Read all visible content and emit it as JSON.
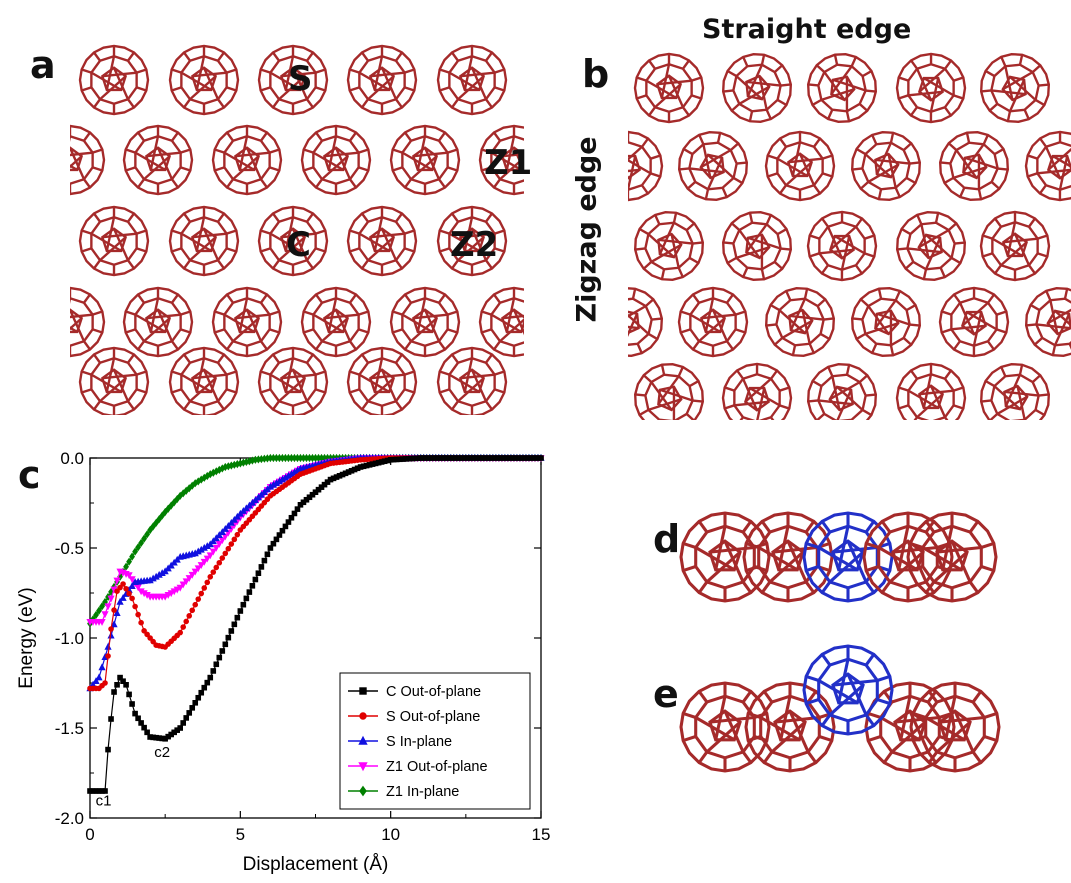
{
  "panels": {
    "a": {
      "letter": "a",
      "labels": [
        "S",
        "Z1",
        "C",
        "Z2"
      ]
    },
    "b": {
      "letter": "b",
      "title_top": "Straight edge",
      "title_side": "Zigzag edge"
    },
    "c": {
      "letter": "c"
    },
    "d": {
      "letter": "d"
    },
    "e": {
      "letter": "e"
    }
  },
  "colors": {
    "molecule": "#a52a2a",
    "highlight": "#2230c8"
  },
  "chart_data": {
    "type": "line",
    "xlabel": "Displacement (Å)",
    "ylabel": "Energy (eV)",
    "xlim": [
      0,
      15
    ],
    "ylim": [
      -2.0,
      0.0
    ],
    "xticks": [
      "0",
      "5",
      "10",
      "15"
    ],
    "yticks": [
      "0.0",
      "-0.5",
      "-1.0",
      "-1.5",
      "-2.0"
    ],
    "legend_position": "bottom-right",
    "annotations": [
      {
        "text": "c1",
        "x": 0.45,
        "y": -1.93
      },
      {
        "text": "c2",
        "x": 2.4,
        "y": -1.66
      }
    ],
    "series": [
      {
        "name": "C Out-of-plane",
        "color": "#000000",
        "marker": "square",
        "x": [
          0,
          0.3,
          0.5,
          0.6,
          0.7,
          0.8,
          1.0,
          1.2,
          1.5,
          2.0,
          2.5,
          3.0,
          4.0,
          5.0,
          6.0,
          7.0,
          8.0,
          9.0,
          10.0,
          11.0,
          12.0,
          15.0
        ],
        "y": [
          -1.85,
          -1.85,
          -1.85,
          -1.62,
          -1.45,
          -1.3,
          -1.22,
          -1.26,
          -1.42,
          -1.55,
          -1.56,
          -1.5,
          -1.22,
          -0.85,
          -0.5,
          -0.26,
          -0.12,
          -0.05,
          -0.01,
          0.0,
          0.0,
          0.0
        ]
      },
      {
        "name": "S Out-of-plane",
        "color": "#e00000",
        "marker": "circle",
        "x": [
          0,
          0.3,
          0.5,
          0.7,
          0.9,
          1.1,
          1.4,
          1.8,
          2.2,
          2.5,
          3.0,
          4.0,
          5.0,
          6.0,
          7.0,
          8.0,
          9.0,
          10.0,
          11.0,
          15.0
        ],
        "y": [
          -1.28,
          -1.28,
          -1.25,
          -0.95,
          -0.74,
          -0.7,
          -0.78,
          -0.96,
          -1.04,
          -1.05,
          -0.97,
          -0.66,
          -0.4,
          -0.21,
          -0.09,
          -0.03,
          -0.01,
          0.0,
          0.0,
          0.0
        ]
      },
      {
        "name": "S In-plane",
        "color": "#1010e0",
        "marker": "triangle",
        "x": [
          0,
          0.3,
          0.6,
          1.0,
          1.5,
          2.0,
          2.5,
          3.0,
          3.5,
          4.0,
          5.0,
          6.0,
          7.0,
          8.0,
          9.0,
          10.0,
          15.0
        ],
        "y": [
          -1.28,
          -1.22,
          -1.05,
          -0.8,
          -0.69,
          -0.68,
          -0.63,
          -0.55,
          -0.53,
          -0.48,
          -0.31,
          -0.16,
          -0.06,
          -0.02,
          0.0,
          0.0,
          0.0
        ]
      },
      {
        "name": "Z1 Out-of-plane",
        "color": "#ff00ff",
        "marker": "triangle-down",
        "x": [
          0,
          0.4,
          0.7,
          1.0,
          1.3,
          1.7,
          2.0,
          2.5,
          3.0,
          4.0,
          5.0,
          6.0,
          7.0,
          8.0,
          9.0,
          15.0
        ],
        "y": [
          -0.91,
          -0.91,
          -0.78,
          -0.63,
          -0.65,
          -0.74,
          -0.77,
          -0.77,
          -0.72,
          -0.54,
          -0.33,
          -0.16,
          -0.06,
          -0.02,
          0.0,
          0.0
        ]
      },
      {
        "name": "Z1 In-plane",
        "color": "#008000",
        "marker": "diamond",
        "x": [
          0,
          0.5,
          1.0,
          1.5,
          2.0,
          2.5,
          3.0,
          3.5,
          4.0,
          4.5,
          5.0,
          5.5,
          6.0,
          7.0,
          15.0
        ],
        "y": [
          -0.92,
          -0.8,
          -0.66,
          -0.52,
          -0.4,
          -0.3,
          -0.21,
          -0.14,
          -0.09,
          -0.05,
          -0.03,
          -0.01,
          0.0,
          0.0,
          0.0
        ]
      }
    ]
  }
}
